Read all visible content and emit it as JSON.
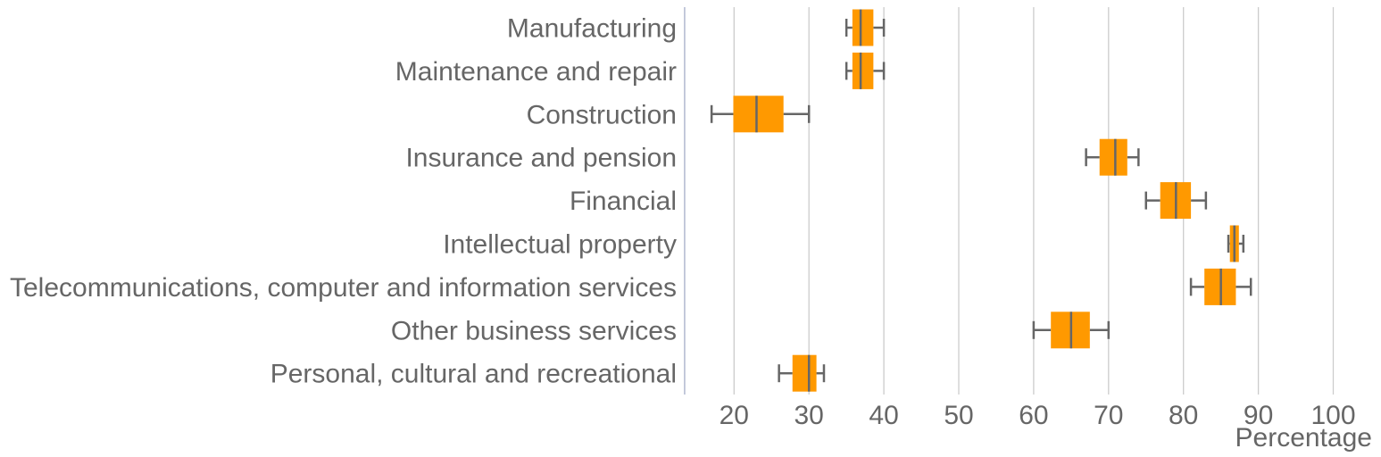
{
  "chart_data": {
    "type": "boxplot",
    "orientation": "horizontal",
    "title": "",
    "xlabel": "Percentage",
    "ylabel": "",
    "xlim": [
      13.4,
      105
    ],
    "xticks": [
      20,
      30,
      40,
      50,
      60,
      70,
      80,
      90,
      100
    ],
    "grid": "vertical",
    "colors": {
      "box": "#FF9900",
      "whisker": "#666666",
      "grid": "#CCCCCC",
      "axis": "#B0B8D0",
      "text": "#666666"
    },
    "categories": [
      "Manufacturing",
      "Maintenance and repair",
      "Construction",
      "Insurance and pension",
      "Financial",
      "Intellectual property",
      "Telecommunications, computer and information services",
      "Other business services",
      "Personal, cultural and recreational"
    ],
    "boxes": [
      {
        "min": 35,
        "q1": 35.8,
        "median": 36.9,
        "q3": 38.6,
        "max": 40
      },
      {
        "min": 35,
        "q1": 35.8,
        "median": 36.9,
        "q3": 38.6,
        "max": 40
      },
      {
        "min": 17,
        "q1": 19.9,
        "median": 23,
        "q3": 26.6,
        "max": 30
      },
      {
        "min": 67,
        "q1": 68.8,
        "median": 70.9,
        "q3": 72.5,
        "max": 74
      },
      {
        "min": 75,
        "q1": 76.9,
        "median": 79,
        "q3": 81,
        "max": 83
      },
      {
        "min": 86,
        "q1": 86.2,
        "median": 86.8,
        "q3": 87.4,
        "max": 88
      },
      {
        "min": 81,
        "q1": 82.8,
        "median": 85,
        "q3": 87,
        "max": 89
      },
      {
        "min": 60,
        "q1": 62.3,
        "median": 65,
        "q3": 67.5,
        "max": 70
      },
      {
        "min": 26,
        "q1": 27.8,
        "median": 30,
        "q3": 31,
        "max": 32
      }
    ]
  }
}
